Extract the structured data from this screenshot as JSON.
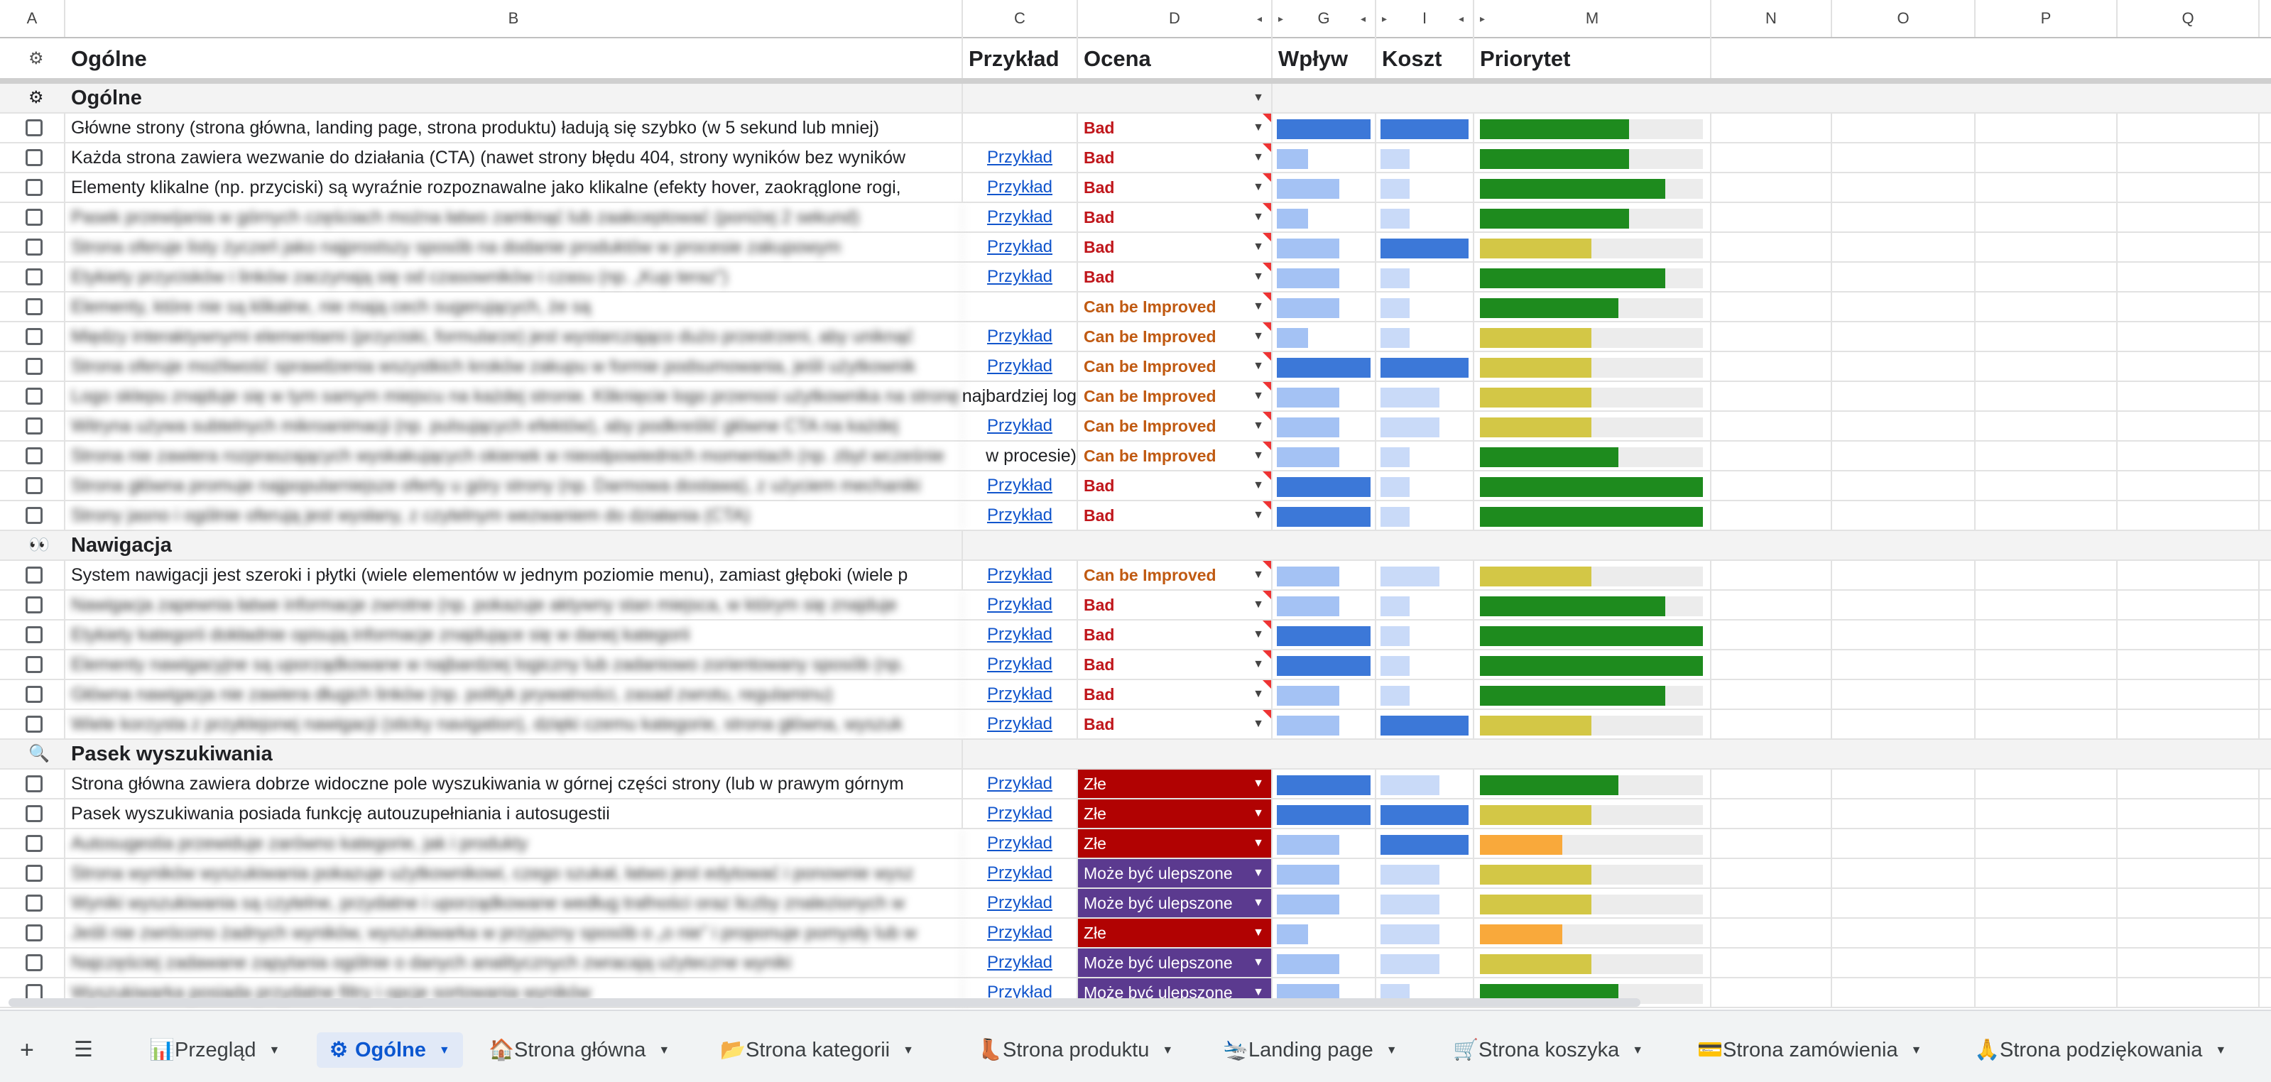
{
  "columns": [
    "A",
    "B",
    "C",
    "D",
    "G",
    "I",
    "M",
    "N",
    "O",
    "P",
    "Q"
  ],
  "header_row": {
    "b": "Ogólne",
    "c": "Przykład",
    "d": "Ocena",
    "g": "Wpływ",
    "i": "Koszt",
    "m": "Priorytet"
  },
  "sections": [
    {
      "title": "Ogólne",
      "icon": "⚙",
      "rows": [
        {
          "text": "Główne strony (strona główna, landing page, strona produktu) ładują się szybko (w 5 sekund lub mniej)",
          "blur": false,
          "example": "",
          "rating": "Bad",
          "rating_style": "bad",
          "impact": 1.0,
          "cost": 1.0,
          "priority": 0.67
        },
        {
          "text": "Każda strona zawiera wezwanie do działania (CTA) (nawet strony błędu 404, strony wyników bez wyników",
          "blur": false,
          "example": "Przykład",
          "rating": "Bad",
          "rating_style": "bad",
          "impact": 0.33,
          "cost": 0.33,
          "priority": 0.67
        },
        {
          "text": "Elementy klikalne (np. przyciski) są wyraźnie rozpoznawalne jako klikalne (efekty hover, zaokrąglone rogi,",
          "blur": false,
          "example": "Przykład",
          "rating": "Bad",
          "rating_style": "bad",
          "impact": 0.67,
          "cost": 0.33,
          "priority": 0.83
        },
        {
          "text": "Pasek przewijania w górnych częściach można łatwo zamknąć lub zaakceptować (poniżej 2 sekund)",
          "blur": true,
          "example": "Przykład",
          "rating": "Bad",
          "rating_style": "bad",
          "impact": 0.33,
          "cost": 0.33,
          "priority": 0.67
        },
        {
          "text": "Strona oferuje listy życzeń jako najprostszy sposób na dodanie produktów w procesie zakupowym",
          "blur": true,
          "example": "Przykład",
          "rating": "Bad",
          "rating_style": "bad",
          "impact": 0.67,
          "cost": 1.0,
          "priority": 0.5
        },
        {
          "text": "Etykiety przycisków i linków zaczynają się od czasowników i czasu (np. „Kup teraz”)",
          "blur": true,
          "example": "Przykład",
          "rating": "Bad",
          "rating_style": "bad",
          "impact": 0.67,
          "cost": 0.33,
          "priority": 0.83
        },
        {
          "text": "Elementy, które nie są klikalne, nie mają cech sugerujących, że są",
          "blur": true,
          "example": "",
          "rating": "Can be Improved",
          "rating_style": "cbi",
          "impact": 0.67,
          "cost": 0.33,
          "priority": 0.62
        },
        {
          "text": "Między interaktywnymi elementami (przyciski, formularze) jest wystarczająco dużo przestrzeni, aby uniknąć",
          "blur": true,
          "example": "Przykład",
          "rating": "Can be Improved",
          "rating_style": "cbi",
          "impact": 0.33,
          "cost": 0.33,
          "priority": 0.5
        },
        {
          "text": "Strona oferuje możliwość sprawdzenia wszystkich kroków zakupu w formie podsumowania, jeśli użytkownik",
          "blur": true,
          "example": "Przykład",
          "rating": "Can be Improved",
          "rating_style": "cbi",
          "impact": 1.0,
          "cost": 1.0,
          "priority": 0.5
        },
        {
          "text": "Logo sklepu znajduje się w tym samym miejscu na każdej stronie. Kliknięcie logo przenosi użytkownika na stronę główną,",
          "blur": true,
          "overflow": "najbardziej log",
          "example": "",
          "rating": "Can be Improved",
          "rating_style": "cbi",
          "impact": 0.67,
          "cost": 0.67,
          "priority": 0.5
        },
        {
          "text": "Witryna używa subtelnych mikroanimacji (np. pulsujących efektów), aby podkreślić główne CTA na każdej",
          "blur": true,
          "example": "Przykład",
          "rating": "Can be Improved",
          "rating_style": "cbi",
          "impact": 0.67,
          "cost": 0.67,
          "priority": 0.5
        },
        {
          "text": "Strona nie zawiera rozpraszających wyskakujących okienek w nieodpowiednich momentach (np. zbyt wcześnie",
          "blur": true,
          "overflow": "w procesie)",
          "example": "",
          "rating": "Can be Improved",
          "rating_style": "cbi",
          "impact": 0.67,
          "cost": 0.33,
          "priority": 0.62
        },
        {
          "text": "Strona główna promuje najpopularniejsze oferty u góry strony (np. Darmowa dostawa), z użyciem mechaniki",
          "blur": true,
          "example": "Przykład",
          "rating": "Bad",
          "rating_style": "bad",
          "impact": 1.0,
          "cost": 0.33,
          "priority": 1.0
        },
        {
          "text": "Strony jasno i ogólnie oferują jest wysłany, z czytelnym wezwaniem do działania (CTA)",
          "blur": true,
          "example": "Przykład",
          "rating": "Bad",
          "rating_style": "bad",
          "impact": 1.0,
          "cost": 0.33,
          "priority": 1.0
        }
      ]
    },
    {
      "title": "Nawigacja",
      "icon": "👀",
      "rows": [
        {
          "text": "System nawigacji jest szeroki i płytki (wiele elementów w jednym poziomie menu), zamiast głęboki (wiele p",
          "blur": false,
          "example": "Przykład",
          "rating": "Can be Improved",
          "rating_style": "cbi",
          "impact": 0.67,
          "cost": 0.67,
          "priority": 0.5
        },
        {
          "text": "Nawigacja zapewnia łatwe informacje zwrotne (np. pokazuje aktywny stan miejsca, w którym się znajduje",
          "blur": true,
          "example": "Przykład",
          "rating": "Bad",
          "rating_style": "bad",
          "impact": 0.67,
          "cost": 0.33,
          "priority": 0.83
        },
        {
          "text": "Etykiety kategorii dokładnie opisują informacje znajdujące się w danej kategorii",
          "blur": true,
          "example": "Przykład",
          "rating": "Bad",
          "rating_style": "bad",
          "impact": 1.0,
          "cost": 0.33,
          "priority": 1.0
        },
        {
          "text": "Elementy nawigacyjne są uporządkowane w najbardziej logiczny lub zadaniowo zorientowany sposób (np.",
          "blur": true,
          "example": "Przykład",
          "rating": "Bad",
          "rating_style": "bad",
          "impact": 1.0,
          "cost": 0.33,
          "priority": 1.0
        },
        {
          "text": "Główna nawigacja nie zawiera długich linków (np. polityk prywatności, zasad zwrotu, regulaminu)",
          "blur": true,
          "example": "Przykład",
          "rating": "Bad",
          "rating_style": "bad",
          "impact": 0.67,
          "cost": 0.33,
          "priority": 0.83
        },
        {
          "text": "Wiele korzysta z przyklejonej nawigacji (sticky navigation), dzięki czemu kategorie, strona główna, wyszuk",
          "blur": true,
          "example": "Przykład",
          "rating": "Bad",
          "rating_style": "bad",
          "impact": 0.67,
          "cost": 1.0,
          "priority": 0.5
        }
      ]
    },
    {
      "title": "Pasek wyszukiwania",
      "icon": "🔍",
      "rows": [
        {
          "text": "Strona główna zawiera dobrze widoczne pole wyszukiwania w górnej części strony (lub w prawym górnym",
          "blur": false,
          "example": "Przykład",
          "rating": "Złe",
          "rating_style": "zle",
          "impact": 1.0,
          "cost": 0.67,
          "priority": 0.62
        },
        {
          "text": "Pasek wyszukiwania posiada funkcję autouzupełniania i autosugestii",
          "blur": false,
          "example": "Przykład",
          "rating": "Złe",
          "rating_style": "zle",
          "impact": 1.0,
          "cost": 1.0,
          "priority": 0.5
        },
        {
          "text": "Autosugestia przewiduje zarówno kategorie, jak i produkty",
          "blur": true,
          "example": "Przykład",
          "rating": "Złe",
          "rating_style": "zle",
          "impact": 0.67,
          "cost": 1.0,
          "priority": 0.37,
          "priority_color": "orange"
        },
        {
          "text": "Strona wyników wyszukiwania pokazuje użytkownikowi, czego szukał, łatwo jest edytować i ponownie wysz",
          "blur": true,
          "example": "Przykład",
          "rating": "Może być ulepszone",
          "rating_style": "mbu",
          "impact": 0.67,
          "cost": 0.67,
          "priority": 0.5
        },
        {
          "text": "Wyniki wyszukiwania są czytelne, przydatne i uporządkowane według trafności oraz liczby znalezionych w",
          "blur": true,
          "example": "Przykład",
          "rating": "Może być ulepszone",
          "rating_style": "mbu",
          "impact": 0.67,
          "cost": 0.67,
          "priority": 0.5
        },
        {
          "text": "Jeśli nie zwrócono żadnych wyników, wyszukiwarka w przyjazny sposób o „o nie” i proponuje pomysły lub w",
          "blur": true,
          "example": "Przykład",
          "rating": "Złe",
          "rating_style": "zle",
          "impact": 0.33,
          "cost": 0.67,
          "priority": 0.37,
          "priority_color": "orange"
        },
        {
          "text": "Najczęściej zadawane zapytania ogólnie o danych analitycznych zwracają użyteczne wyniki",
          "blur": true,
          "example": "Przykład",
          "rating": "Może być ulepszone",
          "rating_style": "mbu",
          "impact": 0.67,
          "cost": 0.67,
          "priority": 0.5
        },
        {
          "text": "Wyszukiwarka posiada przydatne filtry i opcje sortowania wyników",
          "blur": true,
          "example": "Przykład",
          "rating": "Może być ulepszone",
          "rating_style": "mbu",
          "impact": 0.67,
          "cost": 0.33,
          "priority": 0.62
        }
      ]
    }
  ],
  "colors": {
    "impact_high": "#3c78d8",
    "impact_low": "#a4c2f4",
    "cost_high": "#3c78d8",
    "cost_low": "#c9daf8",
    "priority_green": "#1e8b1e",
    "priority_yellow": "#d3c746",
    "priority_orange": "#f9a93b"
  },
  "tabs": [
    {
      "icon": "📊",
      "label": "Przegląd",
      "active": false
    },
    {
      "icon": "⚙",
      "label": "Ogólne",
      "active": true
    },
    {
      "icon": "🏠",
      "label": "Strona główna",
      "active": false
    },
    {
      "icon": "📂",
      "label": "Strona kategorii",
      "active": false
    },
    {
      "icon": "👢",
      "label": "Strona produktu",
      "active": false
    },
    {
      "icon": "🛬",
      "label": "Landing page",
      "active": false
    },
    {
      "icon": "🛒",
      "label": "Strona koszyka",
      "active": false
    },
    {
      "icon": "💳",
      "label": "Strona zamówienia",
      "active": false
    },
    {
      "icon": "🙏",
      "label": "Strona podziękowania",
      "active": false
    }
  ]
}
